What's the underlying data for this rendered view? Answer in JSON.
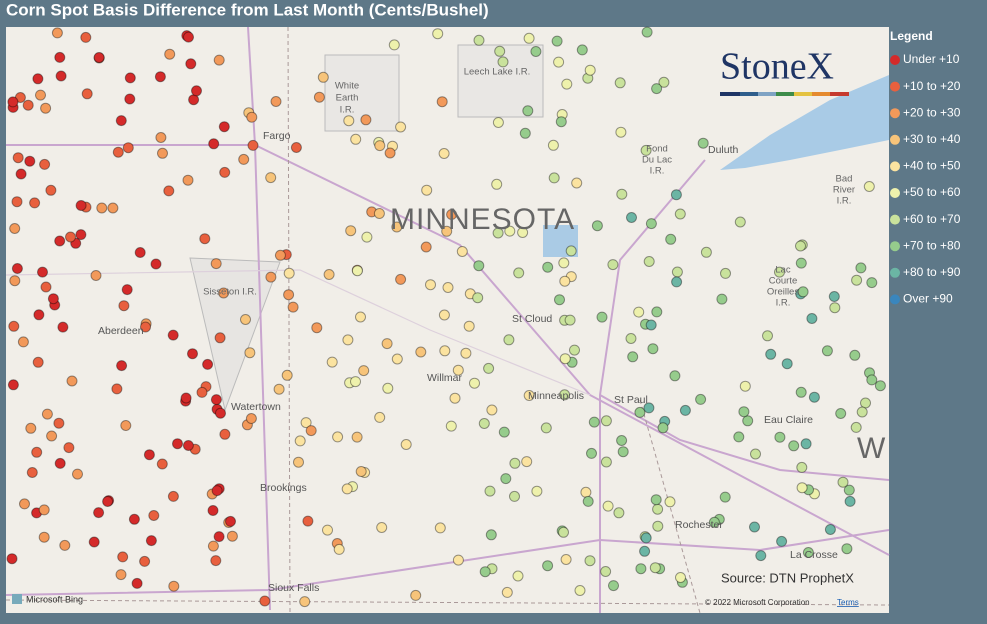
{
  "title": "Corn Spot Basis Difference from Last Month (Cents/Bushel)",
  "legend": {
    "title": "Legend",
    "items": [
      {
        "label": "Under +10",
        "color": "#d42a2a"
      },
      {
        "label": "+10 to +20",
        "color": "#e8603e"
      },
      {
        "label": "+20 to +30",
        "color": "#f2995a"
      },
      {
        "label": "+30 to +40",
        "color": "#f7c47a"
      },
      {
        "label": "+40 to +50",
        "color": "#fbe3a0"
      },
      {
        "label": "+50 to +60",
        "color": "#eef1ac"
      },
      {
        "label": "+60 to +70",
        "color": "#c9e29c"
      },
      {
        "label": "+70 to +80",
        "color": "#96cc8c"
      },
      {
        "label": "+80 to +90",
        "color": "#6bb5a4"
      },
      {
        "label": "Over +90",
        "color": "#3a86bd"
      }
    ]
  },
  "map": {
    "state_label": "MINNESOTA",
    "edge_label": "W",
    "cities": [
      "Fargo",
      "Duluth",
      "St Cloud",
      "Willmar",
      "Minneapolis",
      "St Paul",
      "Aberdeen",
      "Watertown",
      "Brookings",
      "Sioux Falls",
      "Rochester",
      "La Crosse",
      "Eau Claire"
    ],
    "reservations": [
      [
        "White",
        "Earth",
        "I.R."
      ],
      [
        "Leech Lake I.R."
      ],
      [
        "Fond",
        "Du Lac",
        "I.R."
      ],
      [
        "Bad",
        "River",
        "I.R."
      ],
      [
        "Lac",
        "Courte",
        "Oreilles",
        "I.R."
      ],
      [
        "Sisseton I.R."
      ]
    ]
  },
  "logo": "StoneX",
  "source": "Source: DTN ProphetX",
  "attribution": {
    "provider": "Microsoft Bing",
    "copyright": "© 2022 Microsoft Corporation",
    "terms": "Terms"
  }
}
